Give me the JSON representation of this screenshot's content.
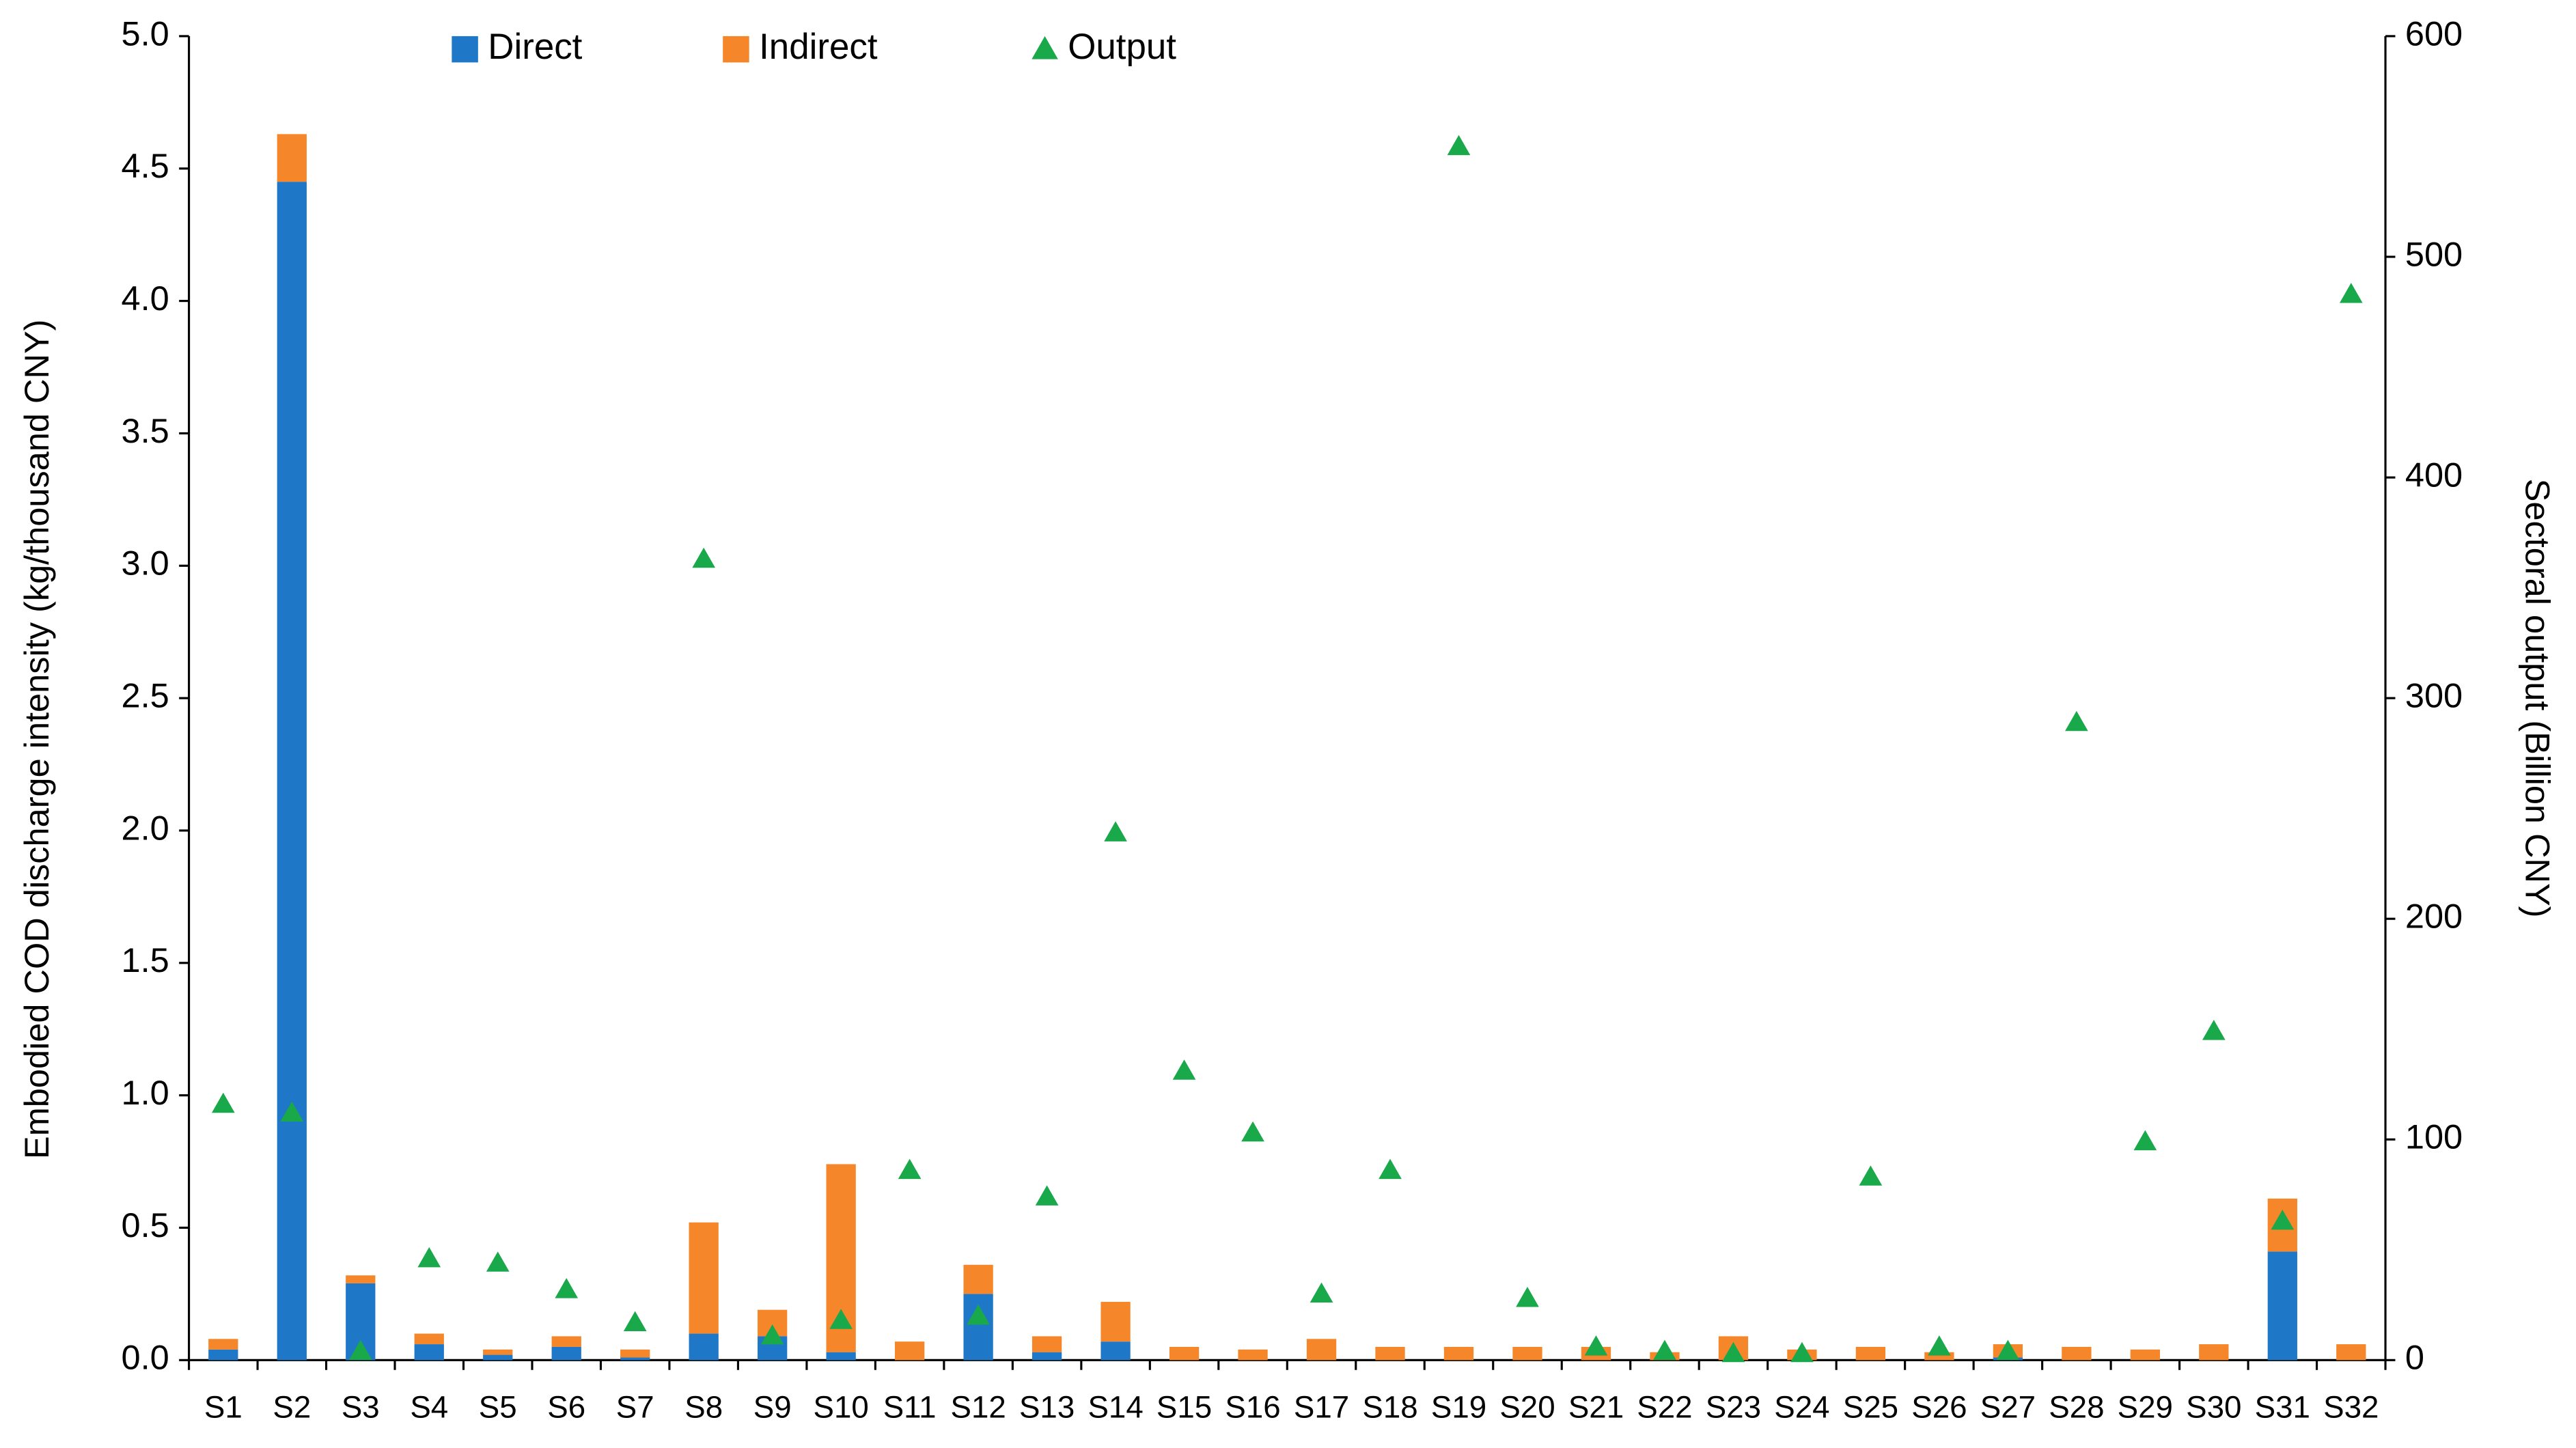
{
  "chart_data": {
    "type": "bar",
    "stacked": true,
    "categories": [
      "S1",
      "S2",
      "S3",
      "S4",
      "S5",
      "S6",
      "S7",
      "S8",
      "S9",
      "S10",
      "S11",
      "S12",
      "S13",
      "S14",
      "S15",
      "S16",
      "S17",
      "S18",
      "S19",
      "S20",
      "S21",
      "S22",
      "S23",
      "S24",
      "S25",
      "S26",
      "S27",
      "S28",
      "S29",
      "S30",
      "S31",
      "S32"
    ],
    "series": [
      {
        "name": "Direct",
        "type": "bar",
        "color": "#1f77c8",
        "values": [
          0.04,
          4.45,
          0.29,
          0.06,
          0.02,
          0.05,
          0.01,
          0.1,
          0.09,
          0.03,
          0,
          0.25,
          0.03,
          0.07,
          0,
          0,
          0,
          0,
          0,
          0,
          0,
          0,
          0,
          0,
          0,
          0,
          0.01,
          0,
          0,
          0,
          0.41,
          0
        ]
      },
      {
        "name": "Indirect",
        "type": "bar",
        "color": "#f5862a",
        "values": [
          0.04,
          0.18,
          0.03,
          0.04,
          0.02,
          0.04,
          0.03,
          0.42,
          0.1,
          0.71,
          0.07,
          0.11,
          0.06,
          0.15,
          0.05,
          0.04,
          0.08,
          0.05,
          0.05,
          0.05,
          0.05,
          0.03,
          0.09,
          0.04,
          0.05,
          0.03,
          0.05,
          0.05,
          0.04,
          0.06,
          0.2,
          0.06
        ]
      },
      {
        "name": "Output",
        "type": "scatter",
        "axis": "y2",
        "color": "#19a84a",
        "values": [
          116,
          112,
          4,
          46,
          44,
          32,
          17,
          363,
          11,
          18,
          86,
          20,
          74,
          239,
          131,
          103,
          30,
          86,
          550,
          28,
          6,
          4,
          3,
          3,
          83,
          6,
          4,
          289,
          99,
          149,
          63,
          483
        ]
      }
    ],
    "y_label": "Embodied COD discharge intensity (kg/thousand CNY)",
    "y2_label": "Sectoral output (Billion CNY)",
    "ylim": [
      0,
      5
    ],
    "yticks": [
      {
        "value": 0,
        "label": "0.0"
      },
      {
        "value": 0.5,
        "label": "0.5"
      },
      {
        "value": 1,
        "label": "1.0"
      },
      {
        "value": 1.5,
        "label": "1.5"
      },
      {
        "value": 2,
        "label": "2.0"
      },
      {
        "value": 2.5,
        "label": "2.5"
      },
      {
        "value": 3,
        "label": "3.0"
      },
      {
        "value": 3.5,
        "label": "3.5"
      },
      {
        "value": 4,
        "label": "4.0"
      },
      {
        "value": 4.5,
        "label": "4.5"
      },
      {
        "value": 5,
        "label": "5.0"
      }
    ],
    "y2lim": [
      0,
      600
    ],
    "y2ticks": [
      0,
      100,
      200,
      300,
      400,
      500,
      600
    ],
    "grid": false,
    "legend": "top"
  }
}
